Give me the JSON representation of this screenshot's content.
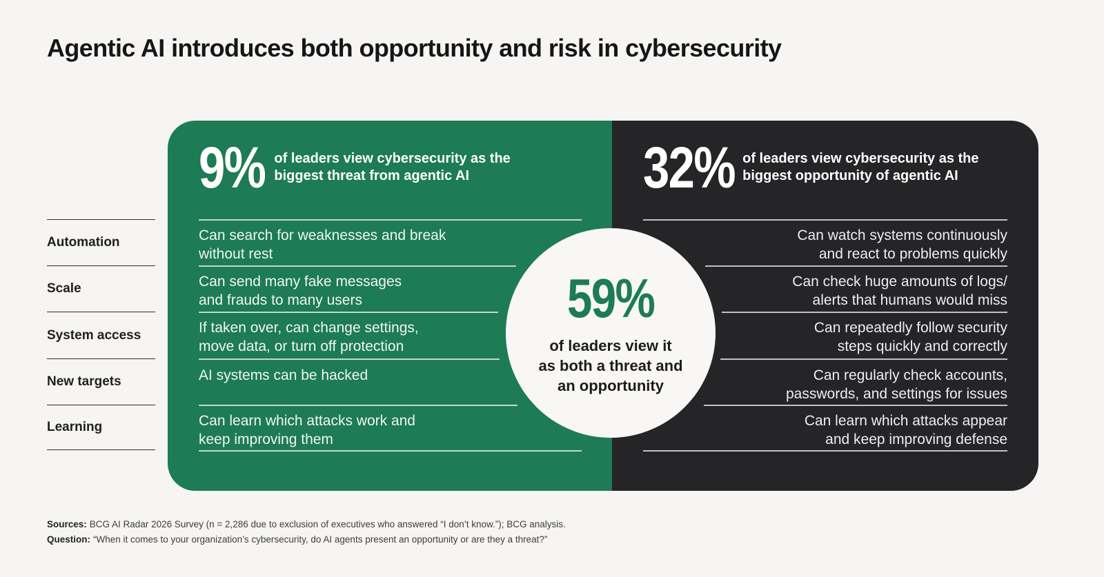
{
  "title": "Agentic AI introduces both opportunity and risk in cybersecurity",
  "colors": {
    "green": "#1d7b56",
    "dark": "#252528",
    "background": "#f6f5f3",
    "circle": "#f8f7f5"
  },
  "sidebar": {
    "categories": [
      "Automation",
      "Scale",
      "System access",
      "New targets",
      "Learning"
    ]
  },
  "threat_panel": {
    "stat": "9%",
    "description": "of leaders view cybersecurity as the\nbiggest threat from agentic AI",
    "items": [
      "Can search for weaknesses and break\nwithout rest",
      "Can send many fake messages\nand frauds to many users",
      "If taken over, can change settings,\nmove data, or turn off protection",
      "AI systems can be hacked",
      "Can learn which attacks work and\nkeep improving them"
    ]
  },
  "opportunity_panel": {
    "stat": "32%",
    "description": "of leaders view cybersecurity as the\nbiggest opportunity of agentic AI",
    "items": [
      "Can watch systems continuously\nand react to problems quickly",
      "Can check huge amounts of logs/\nalerts that humans would miss",
      "Can repeatedly follow security\nsteps quickly and correctly",
      "Can regularly check accounts,\npasswords, and settings for issues",
      "Can learn which attacks appear\nand keep improving defense"
    ]
  },
  "both_circle": {
    "stat": "59%",
    "description": "of leaders view it\nas both a threat and\nan opportunity"
  },
  "footer": {
    "sources_label": "Sources:",
    "sources_text": "BCG AI Radar 2026 Survey (n = 2,286 due to exclusion of executives who answered “I don’t know.”); BCG analysis.",
    "question_label": "Question:",
    "question_text": "“When it comes to your organization’s cybersecurity, do AI agents present an opportunity or are they a threat?”"
  },
  "chart_data": {
    "type": "table",
    "title": "Agentic AI introduces both opportunity and risk in cybersecurity",
    "stats": [
      {
        "label": "of leaders view cybersecurity as the biggest threat from agentic AI",
        "value": 9
      },
      {
        "label": "of leaders view cybersecurity as the biggest opportunity of agentic AI",
        "value": 32
      },
      {
        "label": "of leaders view it as both a threat and an opportunity",
        "value": 59
      }
    ],
    "categories": [
      "Automation",
      "Scale",
      "System access",
      "New targets",
      "Learning"
    ],
    "series": [
      {
        "name": "Threat from agentic AI (9%)",
        "values": [
          "Can search for weaknesses and break without rest",
          "Can send many fake messages and frauds to many users",
          "If taken over, can change settings, move data, or turn off protection",
          "AI systems can be hacked",
          "Can learn which attacks work and keep improving them"
        ]
      },
      {
        "name": "Opportunity of agentic AI (32%)",
        "values": [
          "Can watch systems continuously and react to problems quickly",
          "Can check huge amounts of logs/alerts that humans would miss",
          "Can repeatedly follow security steps quickly and correctly",
          "Can regularly check accounts, passwords, and settings for issues",
          "Can learn which attacks appear and keep improving defense"
        ]
      }
    ]
  }
}
